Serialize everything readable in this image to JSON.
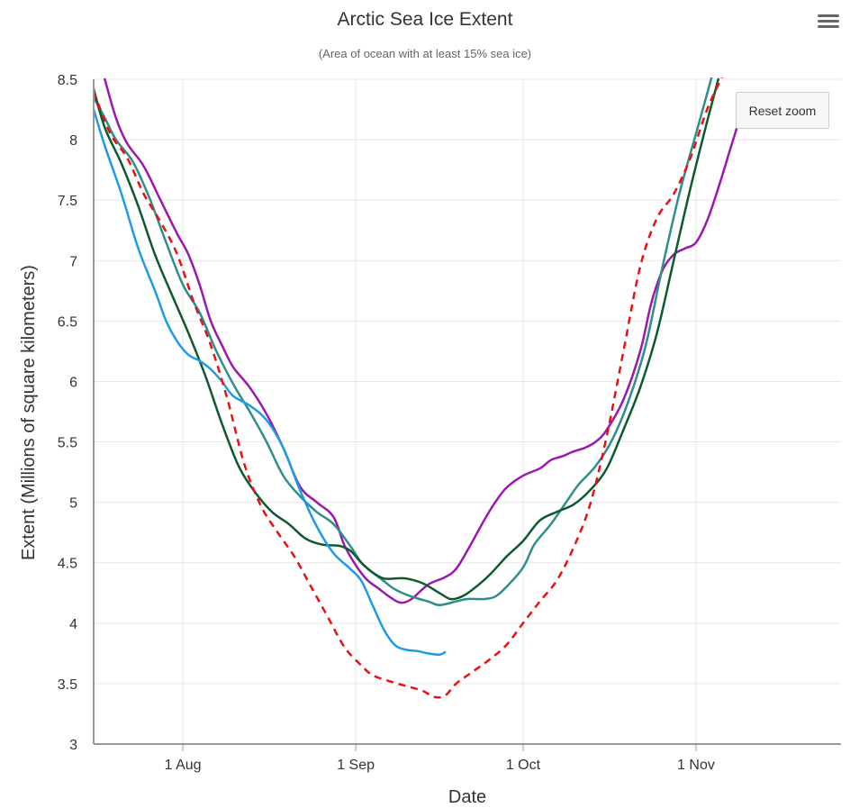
{
  "menu_icon": "hamburger-menu-icon",
  "reset_zoom_label": "Reset zoom",
  "chart_data": {
    "type": "line",
    "title": "Arctic Sea Ice Extent",
    "subtitle": "(Area of ocean with at least 15% sea ice)",
    "xlabel": "Date",
    "ylabel": "Extent (Millions of square kilometers)",
    "xlim": [
      "2000-07-16",
      "2000-11-27"
    ],
    "ylim": [
      3,
      8.5
    ],
    "yticks": [
      "3",
      "3.5",
      "4",
      "4.5",
      "5",
      "5.5",
      "6",
      "6.5",
      "7",
      "7.5",
      "8",
      "8.5"
    ],
    "xticks": [
      {
        "date": "2000-08-01",
        "label": "1 Aug"
      },
      {
        "date": "2000-09-01",
        "label": "1 Sep"
      },
      {
        "date": "2000-10-01",
        "label": "1 Oct"
      },
      {
        "date": "2000-11-01",
        "label": "1 Nov"
      }
    ],
    "grid": true,
    "series": [
      {
        "color": "#9b17b0",
        "dash": false,
        "points": [
          [
            "2000-07-18",
            8.5
          ],
          [
            "2000-07-20",
            8.18
          ],
          [
            "2000-07-22",
            7.97
          ],
          [
            "2000-07-25",
            7.78
          ],
          [
            "2000-07-28",
            7.5
          ],
          [
            "2000-07-31",
            7.22
          ],
          [
            "2000-08-02",
            7.05
          ],
          [
            "2000-08-04",
            6.8
          ],
          [
            "2000-08-06",
            6.5
          ],
          [
            "2000-08-08",
            6.3
          ],
          [
            "2000-08-10",
            6.12
          ],
          [
            "2000-08-13",
            5.95
          ],
          [
            "2000-08-16",
            5.73
          ],
          [
            "2000-08-19",
            5.45
          ],
          [
            "2000-08-22",
            5.13
          ],
          [
            "2000-08-25",
            5.0
          ],
          [
            "2000-08-28",
            4.88
          ],
          [
            "2000-08-30",
            4.64
          ],
          [
            "2000-09-01",
            4.48
          ],
          [
            "2000-09-03",
            4.36
          ],
          [
            "2000-09-05",
            4.29
          ],
          [
            "2000-09-07",
            4.22
          ],
          [
            "2000-09-09",
            4.17
          ],
          [
            "2000-09-11",
            4.2
          ],
          [
            "2000-09-14",
            4.32
          ],
          [
            "2000-09-17",
            4.38
          ],
          [
            "2000-09-19",
            4.45
          ],
          [
            "2000-09-21",
            4.6
          ],
          [
            "2000-09-24",
            4.85
          ],
          [
            "2000-09-26",
            5.0
          ],
          [
            "2000-09-28",
            5.12
          ],
          [
            "2000-10-01",
            5.22
          ],
          [
            "2000-10-04",
            5.28
          ],
          [
            "2000-10-06",
            5.35
          ],
          [
            "2000-10-08",
            5.38
          ],
          [
            "2000-10-10",
            5.42
          ],
          [
            "2000-10-12",
            5.45
          ],
          [
            "2000-10-14",
            5.5
          ],
          [
            "2000-10-16",
            5.6
          ],
          [
            "2000-10-19",
            5.85
          ],
          [
            "2000-10-22",
            6.25
          ],
          [
            "2000-10-24",
            6.65
          ],
          [
            "2000-10-26",
            6.92
          ],
          [
            "2000-10-28",
            7.05
          ],
          [
            "2000-10-30",
            7.1
          ],
          [
            "2000-11-01",
            7.15
          ],
          [
            "2000-11-03",
            7.33
          ],
          [
            "2000-11-05",
            7.6
          ],
          [
            "2000-11-07",
            7.9
          ],
          [
            "2000-11-10",
            8.35
          ]
        ]
      },
      {
        "color": "#2e8f8a",
        "dash": false,
        "points": [
          [
            "2000-07-16",
            8.35
          ],
          [
            "2000-07-18",
            8.18
          ],
          [
            "2000-07-20",
            8.0
          ],
          [
            "2000-07-23",
            7.82
          ],
          [
            "2000-07-26",
            7.52
          ],
          [
            "2000-07-29",
            7.15
          ],
          [
            "2000-08-01",
            6.8
          ],
          [
            "2000-08-04",
            6.57
          ],
          [
            "2000-08-07",
            6.25
          ],
          [
            "2000-08-10",
            5.98
          ],
          [
            "2000-08-13",
            5.75
          ],
          [
            "2000-08-16",
            5.5
          ],
          [
            "2000-08-19",
            5.22
          ],
          [
            "2000-08-22",
            5.05
          ],
          [
            "2000-08-25",
            4.92
          ],
          [
            "2000-08-28",
            4.82
          ],
          [
            "2000-08-31",
            4.64
          ],
          [
            "2000-09-02",
            4.5
          ],
          [
            "2000-09-04",
            4.42
          ],
          [
            "2000-09-06",
            4.35
          ],
          [
            "2000-09-08",
            4.28
          ],
          [
            "2000-09-11",
            4.22
          ],
          [
            "2000-09-14",
            4.18
          ],
          [
            "2000-09-16",
            4.15
          ],
          [
            "2000-09-19",
            4.18
          ],
          [
            "2000-09-21",
            4.2
          ],
          [
            "2000-09-24",
            4.2
          ],
          [
            "2000-09-26",
            4.22
          ],
          [
            "2000-09-28",
            4.3
          ],
          [
            "2000-10-01",
            4.46
          ],
          [
            "2000-10-03",
            4.65
          ],
          [
            "2000-10-06",
            4.82
          ],
          [
            "2000-10-09",
            5.02
          ],
          [
            "2000-10-11",
            5.15
          ],
          [
            "2000-10-14",
            5.3
          ],
          [
            "2000-10-17",
            5.52
          ],
          [
            "2000-10-20",
            5.85
          ],
          [
            "2000-10-23",
            6.3
          ],
          [
            "2000-10-26",
            6.95
          ],
          [
            "2000-10-29",
            7.55
          ],
          [
            "2000-11-01",
            8.05
          ],
          [
            "2000-11-03",
            8.38
          ],
          [
            "2000-11-04",
            8.55
          ]
        ]
      },
      {
        "color": "#0d5a2e",
        "dash": false,
        "points": [
          [
            "2000-07-16",
            8.42
          ],
          [
            "2000-07-18",
            8.1
          ],
          [
            "2000-07-21",
            7.8
          ],
          [
            "2000-07-24",
            7.45
          ],
          [
            "2000-07-27",
            7.05
          ],
          [
            "2000-07-30",
            6.72
          ],
          [
            "2000-08-02",
            6.4
          ],
          [
            "2000-08-05",
            6.05
          ],
          [
            "2000-08-08",
            5.65
          ],
          [
            "2000-08-11",
            5.3
          ],
          [
            "2000-08-14",
            5.08
          ],
          [
            "2000-08-17",
            4.92
          ],
          [
            "2000-08-20",
            4.82
          ],
          [
            "2000-08-23",
            4.7
          ],
          [
            "2000-08-26",
            4.65
          ],
          [
            "2000-08-29",
            4.64
          ],
          [
            "2000-08-31",
            4.6
          ],
          [
            "2000-09-02",
            4.5
          ],
          [
            "2000-09-04",
            4.42
          ],
          [
            "2000-09-06",
            4.37
          ],
          [
            "2000-09-08",
            4.37
          ],
          [
            "2000-09-10",
            4.37
          ],
          [
            "2000-09-13",
            4.33
          ],
          [
            "2000-09-16",
            4.25
          ],
          [
            "2000-09-18",
            4.2
          ],
          [
            "2000-09-20",
            4.22
          ],
          [
            "2000-09-22",
            4.28
          ],
          [
            "2000-09-25",
            4.4
          ],
          [
            "2000-09-28",
            4.55
          ],
          [
            "2000-10-01",
            4.68
          ],
          [
            "2000-10-04",
            4.85
          ],
          [
            "2000-10-07",
            4.92
          ],
          [
            "2000-10-10",
            4.98
          ],
          [
            "2000-10-13",
            5.1
          ],
          [
            "2000-10-16",
            5.28
          ],
          [
            "2000-10-19",
            5.6
          ],
          [
            "2000-10-22",
            5.95
          ],
          [
            "2000-10-25",
            6.4
          ],
          [
            "2000-10-28",
            7.0
          ],
          [
            "2000-10-31",
            7.6
          ],
          [
            "2000-11-03",
            8.15
          ],
          [
            "2000-11-05",
            8.5
          ]
        ]
      },
      {
        "color": "#1e9be6",
        "dash": false,
        "points": [
          [
            "2000-07-16",
            8.25
          ],
          [
            "2000-07-18",
            7.95
          ],
          [
            "2000-07-21",
            7.55
          ],
          [
            "2000-07-24",
            7.1
          ],
          [
            "2000-07-27",
            6.75
          ],
          [
            "2000-07-29",
            6.5
          ],
          [
            "2000-07-31",
            6.33
          ],
          [
            "2000-08-02",
            6.22
          ],
          [
            "2000-08-04",
            6.17
          ],
          [
            "2000-08-06",
            6.1
          ],
          [
            "2000-08-08",
            6.0
          ],
          [
            "2000-08-10",
            5.88
          ],
          [
            "2000-08-13",
            5.8
          ],
          [
            "2000-08-16",
            5.68
          ],
          [
            "2000-08-19",
            5.45
          ],
          [
            "2000-08-22",
            5.1
          ],
          [
            "2000-08-25",
            4.8
          ],
          [
            "2000-08-28",
            4.58
          ],
          [
            "2000-08-31",
            4.45
          ],
          [
            "2000-09-02",
            4.35
          ],
          [
            "2000-09-04",
            4.15
          ],
          [
            "2000-09-06",
            3.95
          ],
          [
            "2000-09-08",
            3.82
          ],
          [
            "2000-09-10",
            3.78
          ],
          [
            "2000-09-12",
            3.77
          ],
          [
            "2000-09-14",
            3.75
          ],
          [
            "2000-09-16",
            3.74
          ],
          [
            "2000-09-17",
            3.76
          ]
        ]
      },
      {
        "color": "#e81010",
        "dash": true,
        "points": [
          [
            "2000-07-16",
            8.4
          ],
          [
            "2000-07-19",
            8.05
          ],
          [
            "2000-07-22",
            7.85
          ],
          [
            "2000-07-25",
            7.55
          ],
          [
            "2000-07-28",
            7.32
          ],
          [
            "2000-07-31",
            7.05
          ],
          [
            "2000-08-03",
            6.65
          ],
          [
            "2000-08-06",
            6.3
          ],
          [
            "2000-08-09",
            5.85
          ],
          [
            "2000-08-12",
            5.32
          ],
          [
            "2000-08-15",
            4.97
          ],
          [
            "2000-08-18",
            4.75
          ],
          [
            "2000-08-21",
            4.55
          ],
          [
            "2000-08-24",
            4.3
          ],
          [
            "2000-08-27",
            4.05
          ],
          [
            "2000-08-30",
            3.8
          ],
          [
            "2000-09-02",
            3.65
          ],
          [
            "2000-09-04",
            3.57
          ],
          [
            "2000-09-07",
            3.52
          ],
          [
            "2000-09-10",
            3.48
          ],
          [
            "2000-09-13",
            3.44
          ],
          [
            "2000-09-15",
            3.39
          ],
          [
            "2000-09-17",
            3.4
          ],
          [
            "2000-09-19",
            3.5
          ],
          [
            "2000-09-22",
            3.6
          ],
          [
            "2000-09-25",
            3.7
          ],
          [
            "2000-09-28",
            3.82
          ],
          [
            "2000-10-01",
            4.0
          ],
          [
            "2000-10-04",
            4.18
          ],
          [
            "2000-10-07",
            4.35
          ],
          [
            "2000-10-10",
            4.62
          ],
          [
            "2000-10-13",
            4.98
          ],
          [
            "2000-10-16",
            5.55
          ],
          [
            "2000-10-19",
            6.25
          ],
          [
            "2000-10-22",
            6.95
          ],
          [
            "2000-10-25",
            7.35
          ],
          [
            "2000-10-28",
            7.55
          ],
          [
            "2000-10-31",
            7.85
          ],
          [
            "2000-11-03",
            8.25
          ],
          [
            "2000-11-06",
            8.55
          ]
        ]
      }
    ]
  }
}
